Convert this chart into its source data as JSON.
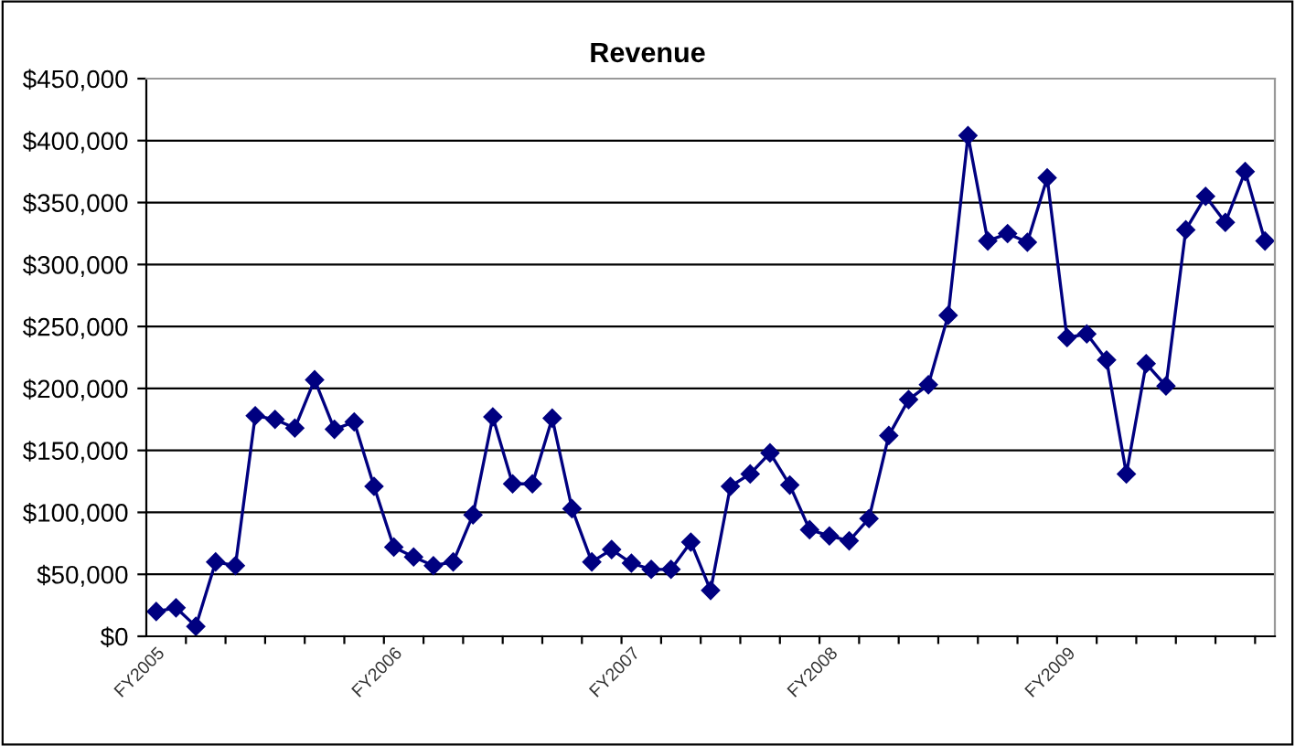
{
  "chart_data": {
    "type": "line",
    "title": "Revenue",
    "categories": [
      "FY2005",
      null,
      null,
      null,
      null,
      null,
      null,
      null,
      null,
      null,
      null,
      null,
      "FY2006",
      null,
      null,
      null,
      null,
      null,
      null,
      null,
      null,
      null,
      null,
      null,
      "FY2007",
      null,
      null,
      null,
      null,
      null,
      null,
      null,
      null,
      null,
      "FY2008",
      null,
      null,
      null,
      null,
      null,
      null,
      null,
      null,
      null,
      null,
      null,
      "FY2009",
      null,
      null,
      null,
      null,
      null,
      null,
      null,
      null,
      null,
      null
    ],
    "series": [
      {
        "color": "#000080",
        "values": [
          20000,
          23000,
          8000,
          60000,
          57000,
          178000,
          175000,
          168000,
          207000,
          167000,
          173000,
          121000,
          72000,
          64000,
          57000,
          60000,
          98000,
          177000,
          123000,
          123000,
          176000,
          103000,
          60000,
          70000,
          59000,
          54000,
          54000,
          76000,
          37000,
          121000,
          131000,
          148000,
          122000,
          86000,
          81000,
          77000,
          95000,
          162000,
          191000,
          203000,
          259000,
          404000,
          319000,
          325000,
          318000,
          370000,
          241000,
          244000,
          223000,
          131000,
          220000,
          202000,
          328000,
          355000,
          334000,
          375000,
          319000
        ]
      }
    ],
    "ylim": [
      0,
      450000
    ],
    "yticks": [
      {
        "value": 0,
        "label": "$0"
      },
      {
        "value": 50000,
        "label": "$50,000"
      },
      {
        "value": 100000,
        "label": "$100,000"
      },
      {
        "value": 150000,
        "label": "$150,000"
      },
      {
        "value": 200000,
        "label": "$200,000"
      },
      {
        "value": 250000,
        "label": "$250,000"
      },
      {
        "value": 300000,
        "label": "$300,000"
      },
      {
        "value": 350000,
        "label": "$350,000"
      },
      {
        "value": 400000,
        "label": "$400,000"
      },
      {
        "value": 450000,
        "label": "$450,000"
      }
    ],
    "grid": "y",
    "marker": "diamond",
    "line_style": "solid",
    "legend": false
  }
}
